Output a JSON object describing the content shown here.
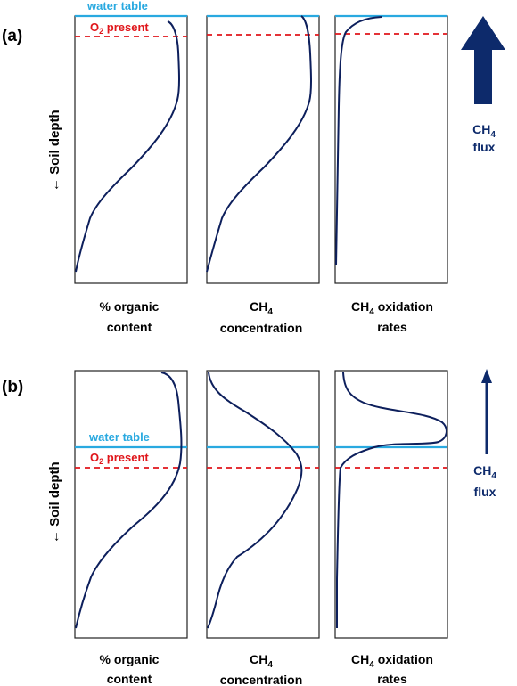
{
  "panels": [
    {
      "id": "a",
      "label": "(a)",
      "water_table_label": "water table",
      "oxygen_label_prefix": "O",
      "oxygen_label_subscript": "2",
      "oxygen_label_suffix": " present",
      "axis_label": "← Soil depth",
      "flux_label_line1_prefix": "CH",
      "flux_label_line1_subscript": "4",
      "flux_label_line2": "flux",
      "columns": [
        {
          "caption_line1": "% organic",
          "caption_line2": "content"
        },
        {
          "caption_line1_prefix": "CH",
          "caption_line1_subscript": "4",
          "caption_line2": "concentration"
        },
        {
          "caption_line1_prefix": "CH",
          "caption_line1_subscript": "4",
          "caption_line1_suffix": " oxidation",
          "caption_line2": "rates"
        }
      ]
    },
    {
      "id": "b",
      "label": "(b)",
      "water_table_label": "water table",
      "oxygen_label_prefix": "O",
      "oxygen_label_subscript": "2",
      "oxygen_label_suffix": " present",
      "axis_label": "← Soil depth",
      "flux_label_line1_prefix": "CH",
      "flux_label_line1_subscript": "4",
      "flux_label_line2": "flux",
      "columns": [
        {
          "caption_line1": "% organic",
          "caption_line2": "content"
        },
        {
          "caption_line1_prefix": "CH",
          "caption_line1_subscript": "4",
          "caption_line2": "concentration"
        },
        {
          "caption_line1_prefix": "CH",
          "caption_line1_subscript": "4",
          "caption_line1_suffix": " oxidation",
          "caption_line2": "rates"
        }
      ]
    }
  ],
  "colors": {
    "curve": "#0d1f5c",
    "water_table": "#29a9e0",
    "oxygen": "#e0161b",
    "arrow": "#0d2a6b",
    "box": "#222222"
  }
}
